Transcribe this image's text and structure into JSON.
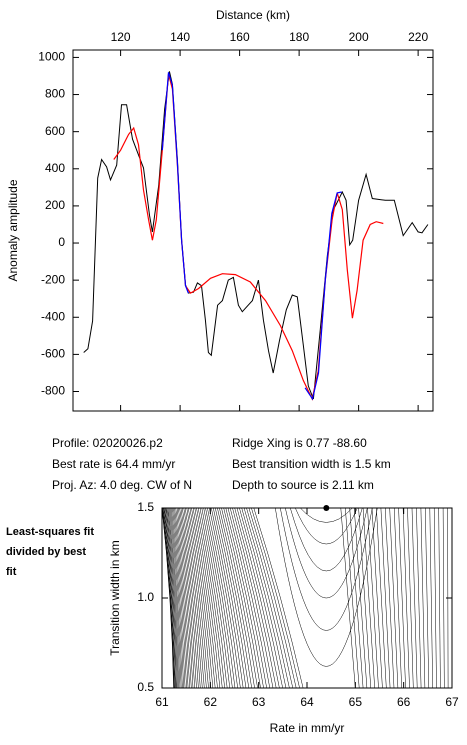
{
  "chart_data": [
    {
      "type": "line",
      "xlabel": "Distance (km)",
      "ylabel": "Anomaly amplitude",
      "xlim": [
        104,
        225
      ],
      "xticks": [
        120,
        140,
        160,
        180,
        200,
        220
      ],
      "ylim": [
        -905,
        1040
      ],
      "yticks": [
        -800,
        -600,
        -400,
        -200,
        0,
        200,
        400,
        600,
        800,
        1000
      ],
      "series": [
        {
          "color": "#000000",
          "x": [
            107.6,
            109,
            110.6,
            112.3,
            113.6,
            115.3,
            116.6,
            118.7,
            120.3,
            122,
            124,
            126,
            127.7,
            129.7,
            130.7,
            132.8,
            134.8,
            136.4,
            137.4,
            139.1,
            140.5,
            141.8,
            142.8,
            144.5,
            145.8,
            147.2,
            148.5,
            149.5,
            150.5,
            152.6,
            154.2,
            156.2,
            157.9,
            159.6,
            160.9,
            162.9,
            164.3,
            166.3,
            168,
            169.7,
            171.3,
            173.4,
            175.7,
            177.7,
            179.4,
            181.4,
            183.1,
            184.8,
            187.1,
            189.5,
            191.5,
            192.5,
            194.5,
            195.8,
            197,
            198,
            200,
            202.5,
            204.6,
            209,
            212,
            215,
            218,
            220,
            221.3,
            223.3
          ],
          "values": [
            -590,
            -570,
            -420,
            350,
            450,
            410,
            340,
            420,
            745,
            745,
            560,
            475,
            405,
            150,
            60,
            310,
            720,
            925,
            855,
            450,
            15,
            -225,
            -270,
            -265,
            -215,
            -230,
            -415,
            -590,
            -605,
            -335,
            -310,
            -200,
            -185,
            -335,
            -370,
            -335,
            -310,
            -200,
            -415,
            -580,
            -700,
            -525,
            -360,
            -280,
            -290,
            -550,
            -770,
            -840,
            -470,
            -65,
            180,
            210,
            275,
            230,
            -10,
            15,
            230,
            370,
            240,
            230,
            230,
            40,
            110,
            60,
            55,
            100
          ]
        },
        {
          "color": "#ff0000",
          "x": [
            117.7,
            120,
            122.7,
            124.4,
            126,
            127.7,
            129.4,
            130.7,
            132,
            134,
            136.1,
            137.4,
            139.1,
            140.5,
            141.8,
            143.5,
            146.2,
            150.2,
            154.2,
            158.6,
            163.6,
            168.7,
            173.7,
            177.7,
            181.4,
            184.4,
            186.4,
            188.8,
            191.1,
            192.8,
            194.5,
            196.2,
            197.9,
            199.5,
            201.5,
            203.9,
            205.9,
            208.3
          ],
          "values": [
            450,
            500,
            585,
            620,
            530,
            285,
            125,
            15,
            125,
            500,
            910,
            830,
            420,
            15,
            -230,
            -270,
            -245,
            -190,
            -165,
            -170,
            -210,
            -310,
            -445,
            -580,
            -740,
            -840,
            -690,
            -200,
            125,
            270,
            180,
            -145,
            -405,
            -255,
            15,
            100,
            115,
            105
          ]
        },
        {
          "color": "#0000ff",
          "x": [
            134,
            136.1,
            137.4,
            139.1,
            140.5,
            141.8,
            142.8
          ],
          "values": [
            500,
            920,
            850,
            430,
            15,
            -230,
            -270
          ]
        },
        {
          "color": "#0000ff",
          "x": [
            182,
            184.5,
            186.5,
            188.8,
            191,
            192.8,
            194.3
          ],
          "values": [
            -780,
            -840,
            -700,
            -200,
            160,
            270,
            275
          ]
        }
      ],
      "annotations": [
        "Profile: 02020026.p2",
        "Ridge Xing is 0.77 -88.60",
        "Best rate is 64.4 mm/yr",
        "Best transition width is 1.5 km",
        "Proj. Az: 4.0 deg. CW of N",
        "Depth to source is   2.11 km"
      ]
    },
    {
      "type": "contour",
      "xlabel": "Rate in mm/yr",
      "ylabel": "Transition width in km",
      "note": "Least-squares fit divided by best fit",
      "xlim": [
        61,
        67
      ],
      "xticks": [
        61,
        62,
        63,
        64,
        65,
        66,
        67
      ],
      "ylim": [
        0.5,
        1.5
      ],
      "yticks": [
        {
          "value": 0.5,
          "label": "0.5"
        },
        {
          "value": 1.0,
          "label": "1.0"
        },
        {
          "value": 1.5,
          "label": "1.5"
        }
      ],
      "best_fit": {
        "x": 64.4,
        "y": 1.5
      }
    }
  ]
}
